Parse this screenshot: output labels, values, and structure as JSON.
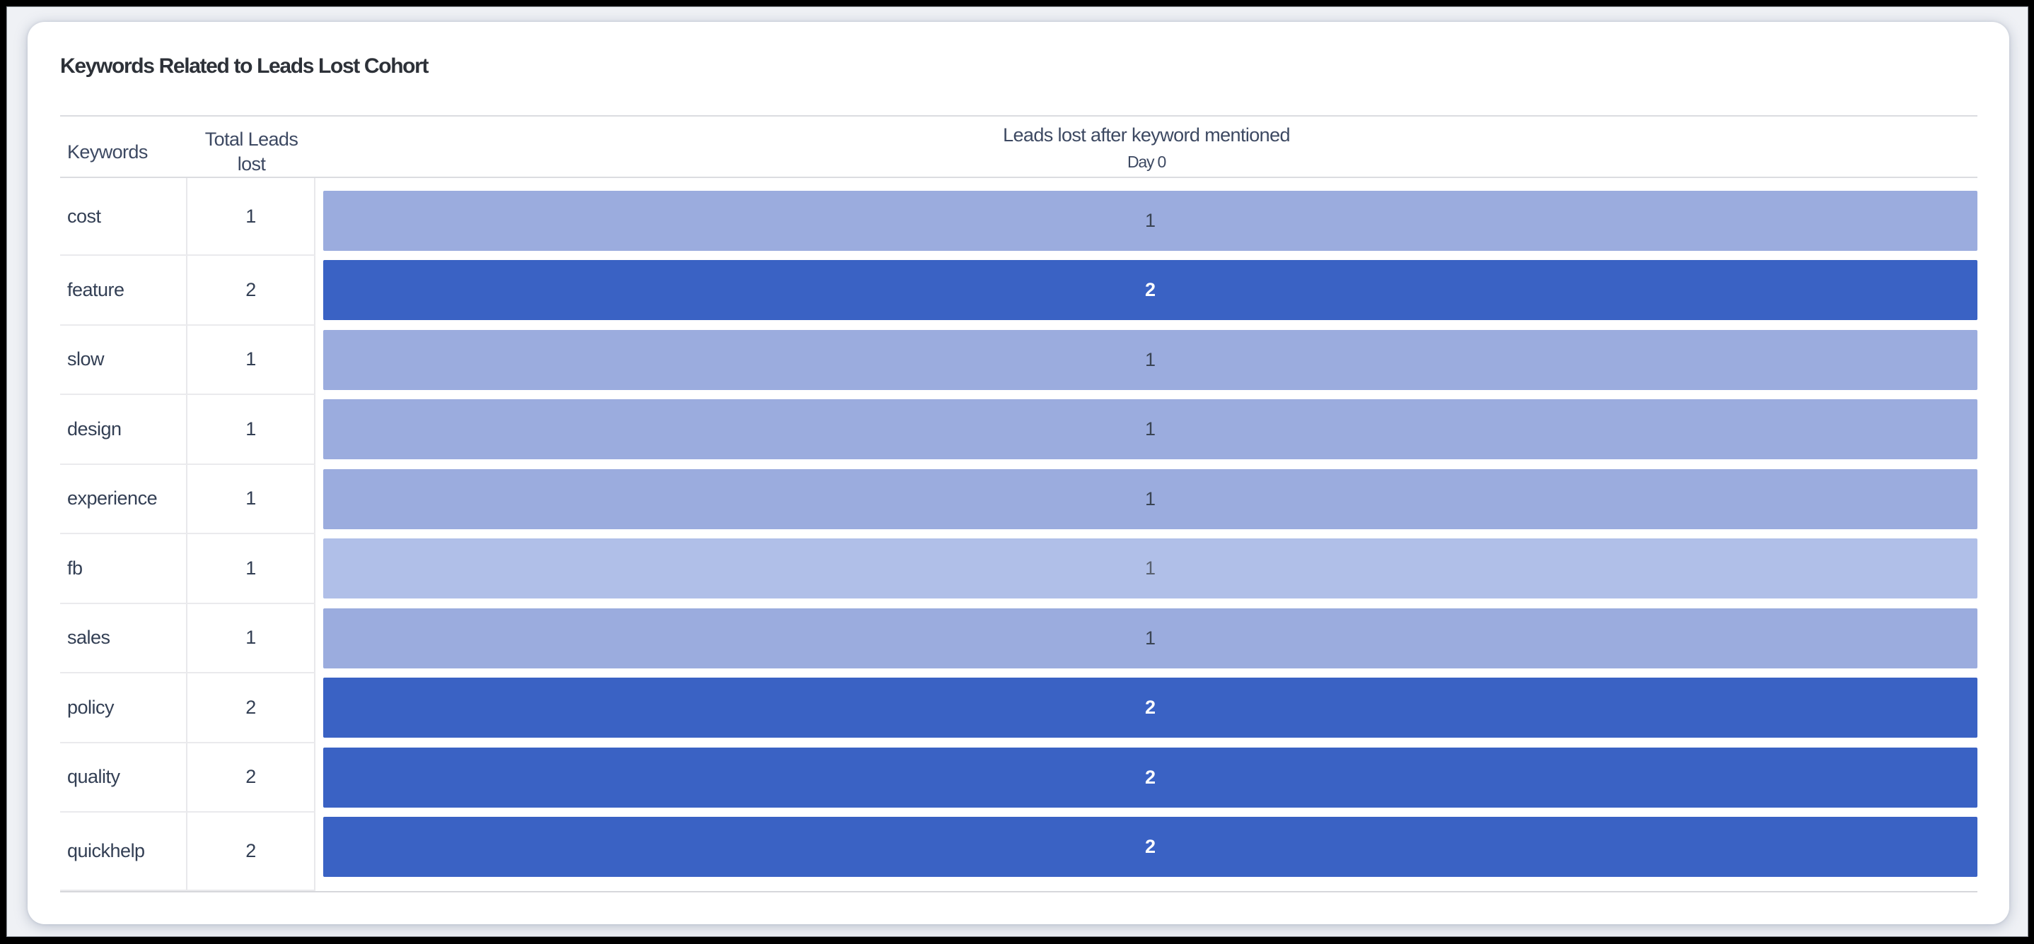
{
  "report": {
    "title": "Keywords Related to Leads Lost Cohort"
  },
  "table": {
    "columns": {
      "keywords": "Keywords",
      "total_line1": "Total Leads",
      "total_line2": "lost",
      "cohort_group": "Leads lost after keyword mentioned",
      "day0": "Day 0"
    },
    "rows": [
      {
        "keyword": "cost",
        "total": "1",
        "day0": "1",
        "shade": "light"
      },
      {
        "keyword": "feature",
        "total": "2",
        "day0": "2",
        "shade": "dark"
      },
      {
        "keyword": "slow",
        "total": "1",
        "day0": "1",
        "shade": "light"
      },
      {
        "keyword": "design",
        "total": "1",
        "day0": "1",
        "shade": "light"
      },
      {
        "keyword": "experience",
        "total": "1",
        "day0": "1",
        "shade": "light"
      },
      {
        "keyword": "fb",
        "total": "1",
        "day0": "1",
        "shade": "lighter"
      },
      {
        "keyword": "sales",
        "total": "1",
        "day0": "1",
        "shade": "light"
      },
      {
        "keyword": "policy",
        "total": "2",
        "day0": "2",
        "shade": "dark"
      },
      {
        "keyword": "quality",
        "total": "2",
        "day0": "2",
        "shade": "dark"
      },
      {
        "keyword": "quickhelp",
        "total": "2",
        "day0": "2",
        "shade": "dark"
      }
    ]
  },
  "chart_data": {
    "type": "heatmap",
    "title": "Keywords Related to Leads Lost Cohort",
    "columns": [
      "Keywords",
      "Total Leads lost",
      "Leads lost after keyword mentioned - Day 0"
    ],
    "categories": [
      "cost",
      "feature",
      "slow",
      "design",
      "experience",
      "fb",
      "sales",
      "policy",
      "quality",
      "quickhelp"
    ],
    "series": [
      {
        "name": "Total Leads lost",
        "values": [
          1,
          2,
          1,
          1,
          1,
          1,
          1,
          2,
          2,
          2
        ]
      },
      {
        "name": "Day 0",
        "values": [
          1,
          2,
          1,
          1,
          1,
          1,
          1,
          2,
          2,
          2
        ]
      }
    ]
  },
  "palette": {
    "light": {
      "bar": "#9bacde",
      "text": "#3a4453"
    },
    "lighter": {
      "bar": "#b0bfe8",
      "text": "#59616f"
    },
    "dark": {
      "bar": "#3a62c4",
      "text": "#ffffff"
    }
  }
}
